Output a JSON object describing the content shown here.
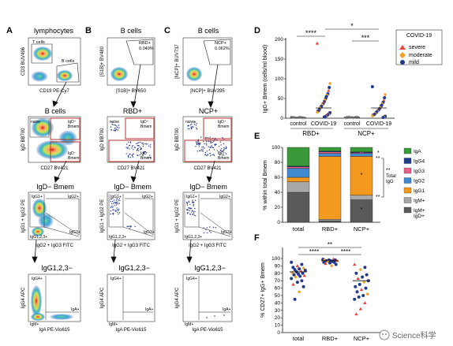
{
  "panel_letters": [
    "A",
    "B",
    "C",
    "D",
    "E",
    "F"
  ],
  "col_titles": [
    "lymphocytes",
    "B cells",
    "B cells"
  ],
  "row1": {
    "a": {
      "x": "CD19 PE-Cy7",
      "y": "CD3 BUV496",
      "gates": [
        "T cells",
        "B cells"
      ]
    },
    "b": {
      "x": "[S1B]+ BV650",
      "y": "[S1B]+ BV480",
      "gate": "RBD+",
      "pct": "0.049%"
    },
    "c": {
      "x": "[NCP]+ BUV395",
      "y": "[NCP]+ BUV737",
      "gate": "NCP+",
      "pct": "0.062%"
    }
  },
  "row2": {
    "titles": [
      "B cells",
      "RBD+",
      "NCP+"
    ],
    "x": "CD27 BV421",
    "y": "IgD BB700",
    "gates": {
      "naive": "naive",
      "igd_pos": "IgD+\nBmem",
      "igd_neg": "IgD−\nBmem"
    }
  },
  "row3": {
    "titles": [
      "IgD− Bmem",
      "IgD− Bmem",
      "IgD− Bmem"
    ],
    "x": "IgG2 + IgG3 FITC",
    "y": "IgG1 + IgG2 PE",
    "gates": {
      "g1": "IgG1+",
      "g2": "IgG2+",
      "g3": "IgG3+",
      "g123": "IgG1,2,3+"
    }
  },
  "row4": {
    "titles": [
      "IgG1,2,3−",
      "IgG1,2,3−",
      "IgG1,2,3−"
    ],
    "x": "IgA PE-Vio615",
    "y": "IgG4 APC",
    "gates": {
      "g4": "IgG4+",
      "a": "IgA+",
      "m": "IgM+"
    }
  },
  "panel_d": {
    "ylabel": "IgG+ Bmem (cells/ml blood)",
    "xticks": [
      "control",
      "COVID-19",
      "control",
      "COVID-19"
    ],
    "groups": [
      "RBD+",
      "NCP+"
    ],
    "yticks": [
      "0",
      "50",
      "100",
      "150",
      "200"
    ],
    "sig": [
      "****",
      "*",
      "***"
    ],
    "legend_title": "COVID-19",
    "legend": [
      {
        "label": "severe",
        "color": "#e8453c",
        "shape": "triangle"
      },
      {
        "label": "moderate",
        "color": "#f4a225",
        "shape": "diamond"
      },
      {
        "label": "mild",
        "color": "#233a8c",
        "shape": "circle"
      }
    ]
  },
  "panel_e": {
    "ylabel": "% within total Bmem",
    "xticks": [
      "total",
      "RBD+",
      "NCP+"
    ],
    "yticks": [
      "0",
      "20",
      "40",
      "60",
      "80",
      "100"
    ],
    "total_igg": "Total\nIgG",
    "sig": [
      "*",
      "**",
      "**",
      "*",
      "*",
      "**"
    ],
    "legend": [
      {
        "label": "IgA",
        "color": "#3a9a3a"
      },
      {
        "label": "IgG4",
        "color": "#1f3c8f"
      },
      {
        "label": "IgG3",
        "color": "#e8628a"
      },
      {
        "label": "IgG2",
        "color": "#3f8ad0"
      },
      {
        "label": "IgG1",
        "color": "#f39a1e"
      },
      {
        "label": "IgM+",
        "color": "#a8a8a8"
      },
      {
        "label": "IgM+\nIgD+",
        "color": "#5a5a5a"
      }
    ],
    "chart_data": {
      "type": "bar",
      "categories": [
        "total",
        "RBD+",
        "NCP+"
      ],
      "series": [
        {
          "name": "IgM+IgD+",
          "values": [
            40,
            2,
            30
          ]
        },
        {
          "name": "IgM+",
          "values": [
            14,
            2,
            6
          ]
        },
        {
          "name": "IgG1",
          "values": [
            6,
            84,
            52
          ]
        },
        {
          "name": "IgG2",
          "values": [
            12,
            4,
            4
          ]
        },
        {
          "name": "IgG3",
          "values": [
            2,
            2,
            1
          ]
        },
        {
          "name": "IgG4",
          "values": [
            1,
            1,
            1
          ]
        },
        {
          "name": "IgA",
          "values": [
            25,
            5,
            6
          ]
        }
      ],
      "ylim": [
        0,
        100
      ]
    }
  },
  "panel_f": {
    "ylabel": "% CD27+ IgG+ Bmem",
    "xticks": [
      "total",
      "RBD+",
      "NCP+"
    ],
    "yticks": [
      "0",
      "10",
      "20",
      "30",
      "40",
      "50",
      "60",
      "70",
      "80",
      "90",
      "100"
    ],
    "sig": [
      "****",
      "**",
      "****"
    ]
  },
  "watermark": "Science科学"
}
